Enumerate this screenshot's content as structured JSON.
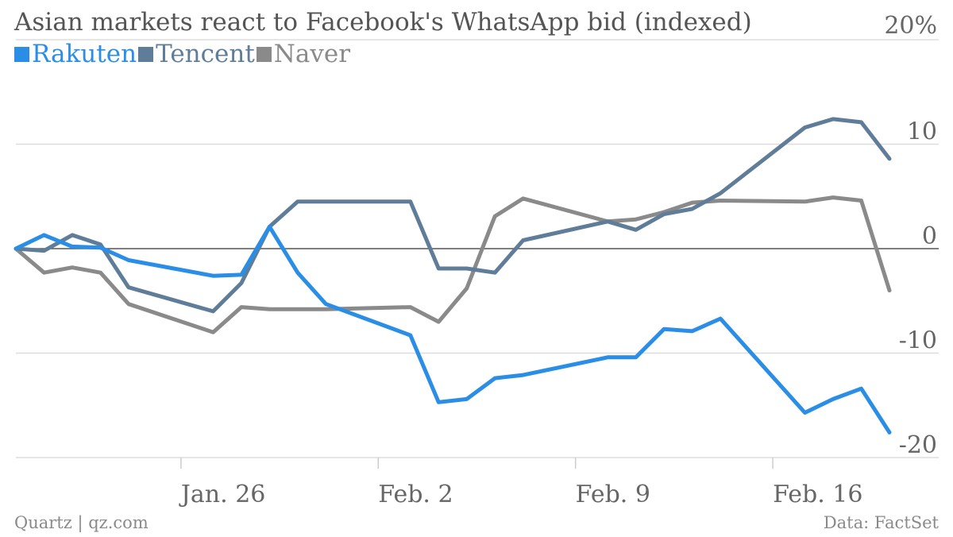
{
  "chart_data": {
    "type": "line",
    "title": "Asian markets react to Facebook's WhatsApp bid (indexed)",
    "source_left": "Quartz | qz.com",
    "source_right": "Data: FactSet",
    "ylim": [
      -20,
      20
    ],
    "y_ticks": [
      {
        "value": 20,
        "label": "20%"
      },
      {
        "value": 10,
        "label": "10"
      },
      {
        "value": 0,
        "label": "0"
      },
      {
        "value": -10,
        "label": "-10"
      },
      {
        "value": -20,
        "label": "-20"
      }
    ],
    "x_range": [
      "2014-01-20",
      "2014-02-19"
    ],
    "x_ticks": [
      {
        "date": "2014-01-26",
        "label": "Jan. 26"
      },
      {
        "date": "2014-02-02",
        "label": "Feb. 2"
      },
      {
        "date": "2014-02-09",
        "label": "Feb. 9"
      },
      {
        "date": "2014-02-16",
        "label": "Feb. 16"
      }
    ],
    "grid": true,
    "legend_position": "top-left",
    "series": [
      {
        "name": "Rakuten",
        "color": "#2b8ee6",
        "points": [
          [
            "2014-01-20",
            0
          ],
          [
            "2014-01-21",
            1.3
          ],
          [
            "2014-01-22",
            0.2
          ],
          [
            "2014-01-23",
            0.1
          ],
          [
            "2014-01-24",
            -1.1
          ],
          [
            "2014-01-27",
            -2.6
          ],
          [
            "2014-01-28",
            -2.5
          ],
          [
            "2014-01-29",
            2.1
          ],
          [
            "2014-01-30",
            -2.3
          ],
          [
            "2014-01-31",
            -5.3
          ],
          [
            "2014-02-03",
            -8.3
          ],
          [
            "2014-02-04",
            -14.7
          ],
          [
            "2014-02-05",
            -14.4
          ],
          [
            "2014-02-06",
            -12.4
          ],
          [
            "2014-02-07",
            -12.1
          ],
          [
            "2014-02-10",
            -10.4
          ],
          [
            "2014-02-11",
            -10.4
          ],
          [
            "2014-02-12",
            -7.7
          ],
          [
            "2014-02-13",
            -7.9
          ],
          [
            "2014-02-14",
            -6.7
          ],
          [
            "2014-02-17",
            -15.7
          ],
          [
            "2014-02-18",
            -14.4
          ],
          [
            "2014-02-19",
            -13.4
          ],
          [
            "2014-02-20",
            -17.6
          ]
        ]
      },
      {
        "name": "Tencent",
        "color": "#5f7d99",
        "points": [
          [
            "2014-01-20",
            0
          ],
          [
            "2014-01-21",
            -0.2
          ],
          [
            "2014-01-22",
            1.3
          ],
          [
            "2014-01-23",
            0.4
          ],
          [
            "2014-01-24",
            -3.7
          ],
          [
            "2014-01-27",
            -6.0
          ],
          [
            "2014-01-28",
            -3.3
          ],
          [
            "2014-01-29",
            2.1
          ],
          [
            "2014-01-30",
            4.5
          ],
          [
            "2014-02-03",
            4.5
          ],
          [
            "2014-02-04",
            -1.9
          ],
          [
            "2014-02-05",
            -1.9
          ],
          [
            "2014-02-06",
            -2.3
          ],
          [
            "2014-02-07",
            0.8
          ],
          [
            "2014-02-10",
            2.6
          ],
          [
            "2014-02-11",
            1.8
          ],
          [
            "2014-02-12",
            3.3
          ],
          [
            "2014-02-13",
            3.8
          ],
          [
            "2014-02-14",
            5.3
          ],
          [
            "2014-02-17",
            11.6
          ],
          [
            "2014-02-18",
            12.4
          ],
          [
            "2014-02-19",
            12.1
          ],
          [
            "2014-02-20",
            8.6
          ]
        ]
      },
      {
        "name": "Naver",
        "color": "#8a8a8a",
        "points": [
          [
            "2014-01-20",
            0
          ],
          [
            "2014-01-21",
            -2.3
          ],
          [
            "2014-01-22",
            -1.8
          ],
          [
            "2014-01-23",
            -2.3
          ],
          [
            "2014-01-24",
            -5.3
          ],
          [
            "2014-01-27",
            -8.0
          ],
          [
            "2014-01-28",
            -5.6
          ],
          [
            "2014-01-29",
            -5.8
          ],
          [
            "2014-01-31",
            -5.8
          ],
          [
            "2014-02-03",
            -5.6
          ],
          [
            "2014-02-04",
            -7.0
          ],
          [
            "2014-02-05",
            -3.8
          ],
          [
            "2014-02-06",
            3.1
          ],
          [
            "2014-02-07",
            4.8
          ],
          [
            "2014-02-10",
            2.6
          ],
          [
            "2014-02-11",
            2.8
          ],
          [
            "2014-02-12",
            3.5
          ],
          [
            "2014-02-13",
            4.4
          ],
          [
            "2014-02-14",
            4.6
          ],
          [
            "2014-02-17",
            4.5
          ],
          [
            "2014-02-18",
            4.9
          ],
          [
            "2014-02-19",
            4.6
          ],
          [
            "2014-02-20",
            -4.0
          ]
        ]
      }
    ]
  }
}
